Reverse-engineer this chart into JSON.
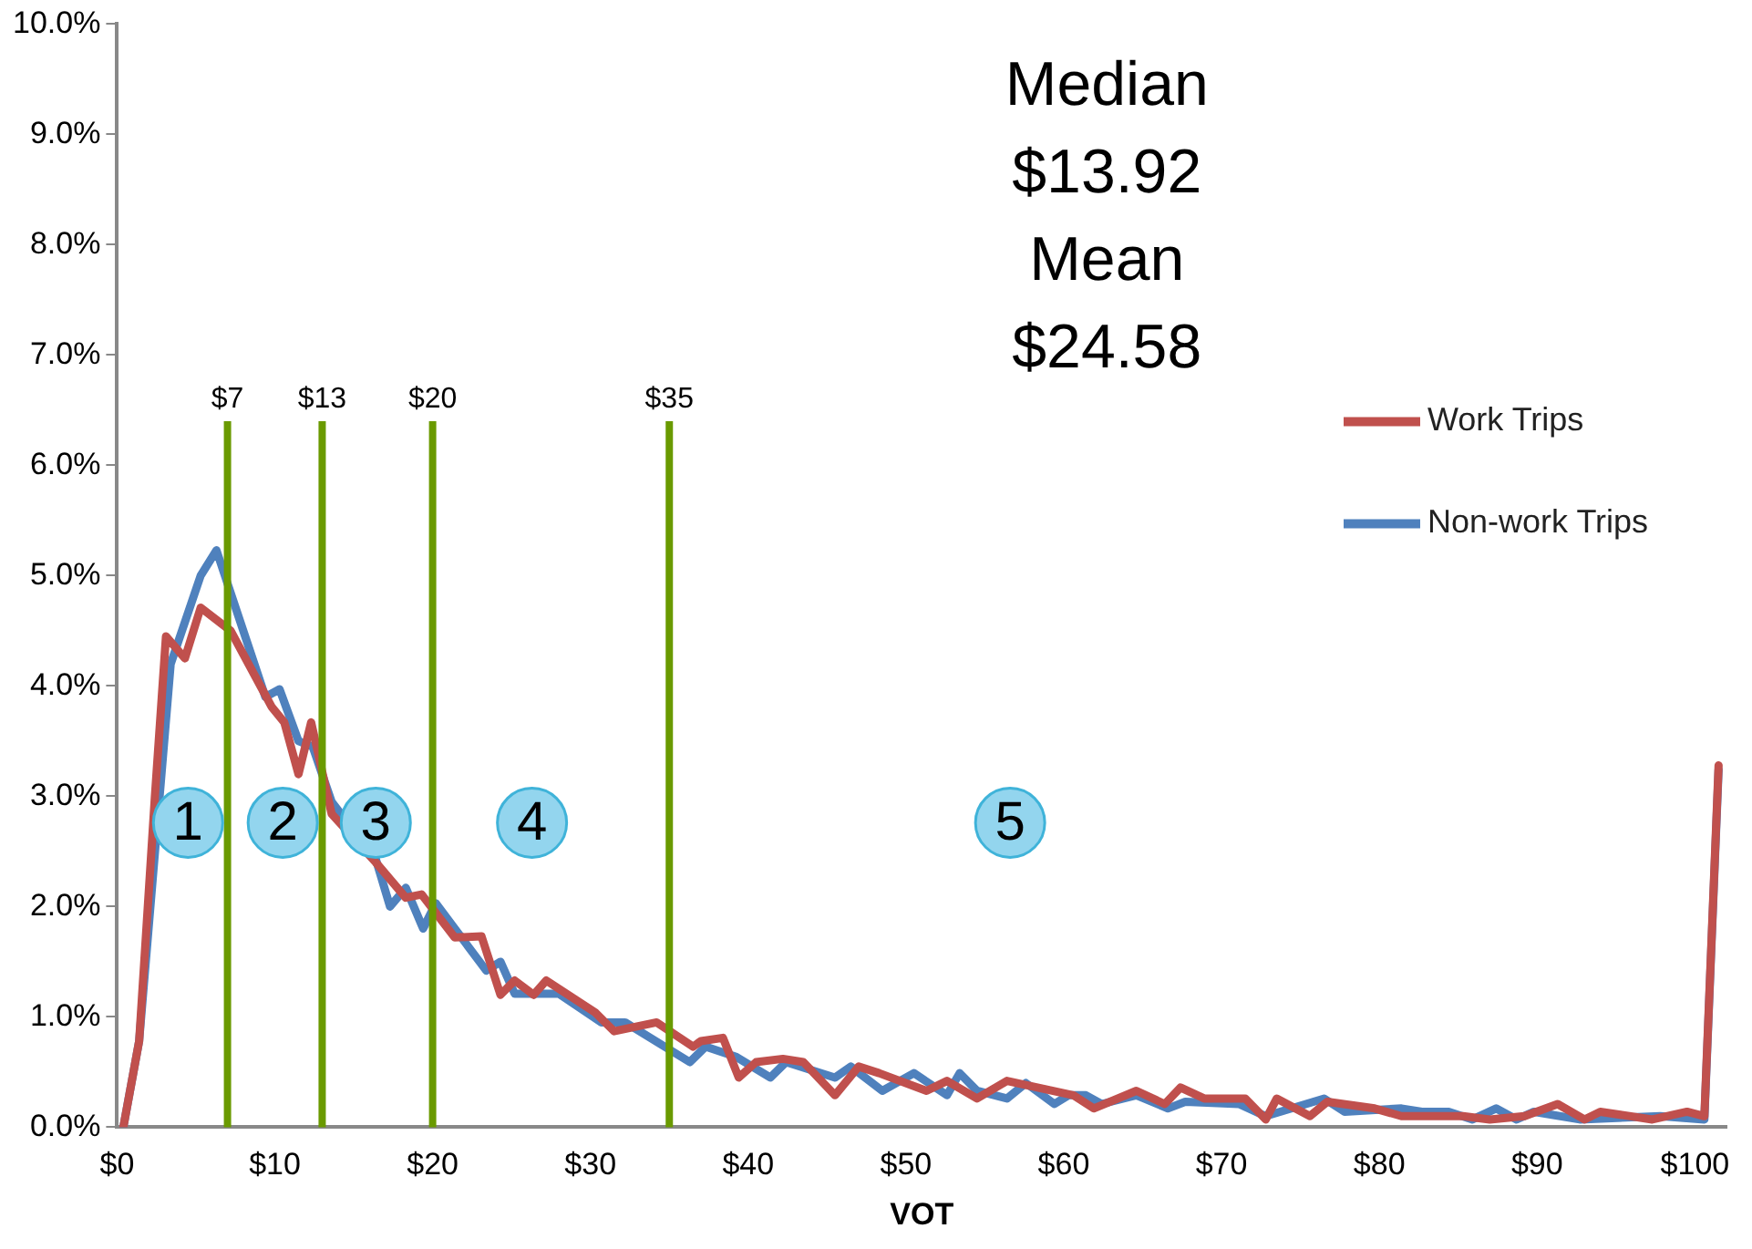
{
  "chart_data": {
    "type": "line",
    "xlabel": "VOT",
    "xlim": [
      0,
      102
    ],
    "xticks": [
      {
        "value": 0,
        "label": "$0"
      },
      {
        "value": 10,
        "label": "$10"
      },
      {
        "value": 20,
        "label": "$20"
      },
      {
        "value": 30,
        "label": "$30"
      },
      {
        "value": 40,
        "label": "$40"
      },
      {
        "value": 50,
        "label": "$50"
      },
      {
        "value": 60,
        "label": "$60"
      },
      {
        "value": 70,
        "label": "$70"
      },
      {
        "value": 80,
        "label": "$80"
      },
      {
        "value": 90,
        "label": "$90"
      },
      {
        "value": 100,
        "label": "$100"
      }
    ],
    "ylim": [
      0,
      10
    ],
    "yticks": [
      {
        "value": 0,
        "label": "0.0%"
      },
      {
        "value": 1,
        "label": "1.0%"
      },
      {
        "value": 2,
        "label": "2.0%"
      },
      {
        "value": 3,
        "label": "3.0%"
      },
      {
        "value": 4,
        "label": "4.0%"
      },
      {
        "value": 5,
        "label": "5.0%"
      },
      {
        "value": 6,
        "label": "6.0%"
      },
      {
        "value": 7,
        "label": "7.0%"
      },
      {
        "value": 8,
        "label": "8.0%"
      },
      {
        "value": 9,
        "label": "9.0%"
      },
      {
        "value": 10,
        "label": "10.0%"
      }
    ],
    "grid": false,
    "legend": "top right",
    "marker": "none",
    "line_style": "solid",
    "series": [
      {
        "name": "Work Trips",
        "color": "#c0504d",
        "x": [
          0.4,
          1.4,
          2.4,
          3.1,
          4.3,
          5.3,
          7.2,
          9.8,
          10.6,
          11.5,
          12.3,
          13.6,
          16.4,
          18.3,
          19.3,
          21.4,
          23.1,
          24.3,
          25.2,
          26.4,
          27.2,
          30.3,
          31.5,
          34.2,
          36.5,
          37.0,
          38.4,
          39.4,
          40.5,
          42.2,
          43.5,
          45.5,
          47.0,
          48.3,
          51.3,
          52.6,
          54.5,
          56.4,
          60.6,
          61.9,
          64.6,
          66.4,
          67.4,
          68.9,
          71.5,
          72.8,
          73.5,
          75.6,
          76.7,
          79.7,
          81.4,
          85.3,
          87.0,
          89.2,
          91.3,
          93.0,
          94.0,
          97.3,
          99.5,
          100.6,
          101.5
        ],
        "values": [
          0,
          0.78,
          3.0,
          4.45,
          4.25,
          4.71,
          4.5,
          3.81,
          3.67,
          3.2,
          3.67,
          2.84,
          2.4,
          2.08,
          2.11,
          1.72,
          1.73,
          1.2,
          1.33,
          1.2,
          1.33,
          1.04,
          0.87,
          0.95,
          0.73,
          0.78,
          0.81,
          0.45,
          0.59,
          0.62,
          0.59,
          0.29,
          0.55,
          0.49,
          0.33,
          0.42,
          0.26,
          0.42,
          0.29,
          0.17,
          0.33,
          0.21,
          0.36,
          0.26,
          0.26,
          0.07,
          0.26,
          0.1,
          0.23,
          0.17,
          0.1,
          0.1,
          0.07,
          0.1,
          0.21,
          0.07,
          0.14,
          0.07,
          0.14,
          0.1,
          3.28
        ]
      },
      {
        "name": "Non-work Trips",
        "color": "#4f81bd",
        "x": [
          0.4,
          1.4,
          3.4,
          5.3,
          6.3,
          9.4,
          10.3,
          11.5,
          12.4,
          13.6,
          16.4,
          17.3,
          18.3,
          19.4,
          20.2,
          23.4,
          24.3,
          25.2,
          28.0,
          30.7,
          32.2,
          36.3,
          37.3,
          39.2,
          41.4,
          42.4,
          45.5,
          46.5,
          48.5,
          50.5,
          52.6,
          53.4,
          54.5,
          56.4,
          57.6,
          59.4,
          60.3,
          61.4,
          62.4,
          64.6,
          66.6,
          67.7,
          71.1,
          72.8,
          76.5,
          77.8,
          81.4,
          82.7,
          84.4,
          85.9,
          87.4,
          88.7,
          89.8,
          92.7,
          97.8,
          100.6,
          101.5
        ],
        "values": [
          0,
          0.78,
          4.2,
          5.0,
          5.23,
          3.9,
          3.97,
          3.5,
          3.45,
          2.95,
          2.43,
          2.0,
          2.17,
          1.8,
          2.03,
          1.42,
          1.5,
          1.21,
          1.21,
          0.95,
          0.95,
          0.59,
          0.73,
          0.64,
          0.45,
          0.59,
          0.45,
          0.55,
          0.33,
          0.49,
          0.29,
          0.49,
          0.33,
          0.26,
          0.4,
          0.21,
          0.29,
          0.29,
          0.21,
          0.29,
          0.17,
          0.23,
          0.21,
          0.1,
          0.26,
          0.14,
          0.17,
          0.14,
          0.14,
          0.07,
          0.17,
          0.07,
          0.14,
          0.07,
          0.1,
          0.07,
          3.24
        ]
      }
    ],
    "ref_lines": [
      {
        "axis": "x",
        "value": 7,
        "label": "$7",
        "color": "#6a9a00"
      },
      {
        "axis": "x",
        "value": 13,
        "label": "$13",
        "color": "#6a9a00"
      },
      {
        "axis": "x",
        "value": 20,
        "label": "$20",
        "color": "#6a9a00"
      },
      {
        "axis": "x",
        "value": 35,
        "label": "$35",
        "color": "#6a9a00"
      }
    ],
    "annotations": [
      "Median",
      "$13.92",
      "Mean",
      "$24.58",
      {
        "text": "1",
        "x": 4.5,
        "y": 2.76
      },
      {
        "text": "2",
        "x": 10.5,
        "y": 2.76
      },
      {
        "text": "3",
        "x": 16.4,
        "y": 2.76
      },
      {
        "text": "4",
        "x": 26.3,
        "y": 2.76
      },
      {
        "text": "5",
        "x": 56.6,
        "y": 2.76
      }
    ]
  }
}
